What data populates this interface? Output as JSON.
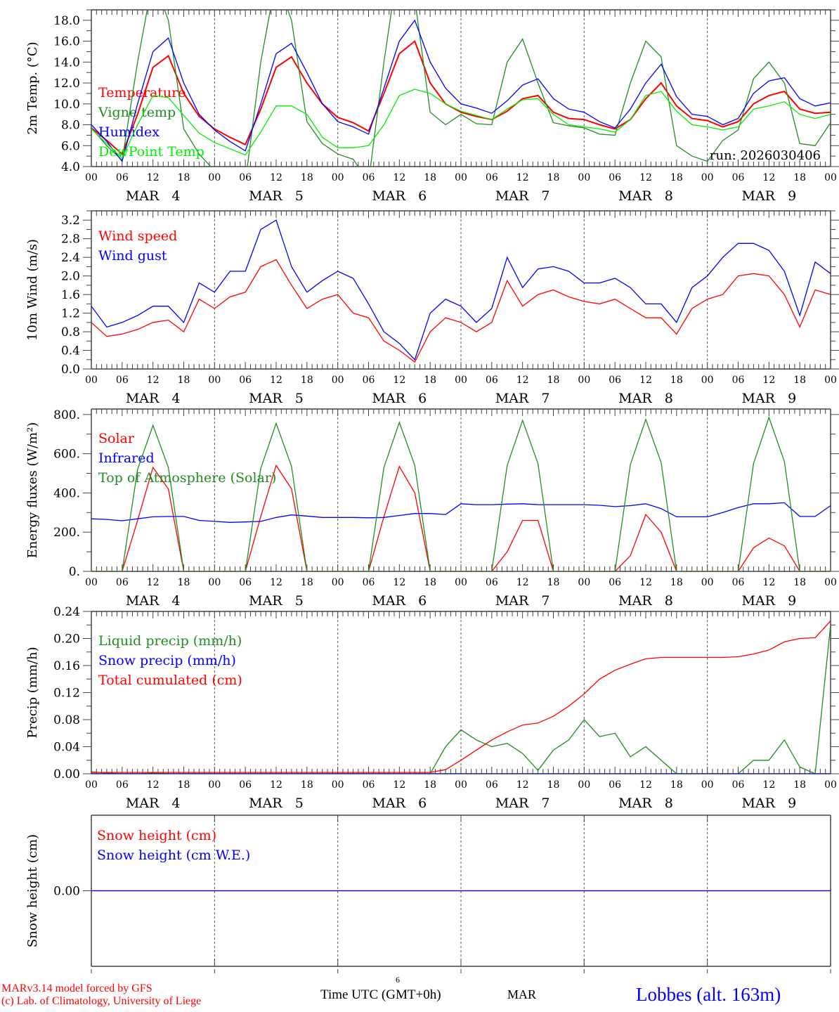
{
  "chart_data": [
    {
      "type": "line",
      "ylabel": "2m Temp. (°C)",
      "ylim": [
        4,
        19
      ],
      "yticks": [
        "4.0",
        "6.0",
        "8.0",
        "10.0",
        "12.0",
        "14.0",
        "16.0",
        "18.0"
      ],
      "ytick_values": [
        4,
        6,
        8,
        10,
        12,
        14,
        16,
        18
      ],
      "x_step_hours": 3,
      "annotation": "run: 2026030406",
      "series": [
        {
          "name": "Temperature",
          "color": "#ff0000",
          "values": [
            7.7,
            6.5,
            5.2,
            9,
            13.5,
            14.6,
            11,
            8.8,
            7.6,
            6.8,
            6.1,
            9.5,
            13.5,
            14.5,
            12,
            10,
            8.7,
            8.2,
            7.4,
            11,
            14.8,
            16,
            12,
            10,
            9.2,
            8.8,
            8.5,
            9.3,
            10.5,
            10.8,
            9.2,
            8.6,
            8.5,
            8,
            7.6,
            8.5,
            10.5,
            12,
            9.8,
            8.6,
            8.4,
            7.8,
            8.3,
            10,
            10.8,
            11.2,
            9.5,
            9.1,
            9.2
          ]
        },
        {
          "name": "Vigne temp",
          "color": "#228b22",
          "values": [
            7.7,
            6,
            4.6,
            14,
            22,
            18,
            7.6,
            5.2,
            3.6,
            2.5,
            2.5,
            14,
            22,
            18,
            8.3,
            6.2,
            5.2,
            4.7,
            2.5,
            14,
            24,
            20,
            9.2,
            8,
            9,
            8.1,
            8,
            14,
            16.2,
            12,
            8.2,
            7.9,
            7.7,
            7.1,
            7,
            12,
            16,
            14.5,
            6,
            5,
            4.5,
            6.5,
            7.5,
            12.4,
            14,
            12,
            6.2,
            6,
            8.2
          ]
        },
        {
          "name": "Humidex",
          "color": "#0000ff",
          "values": [
            8,
            6.4,
            4.5,
            10,
            15,
            16.3,
            12,
            9,
            7.5,
            6.4,
            5.5,
            10,
            14.8,
            15.8,
            13,
            10,
            8.3,
            7.8,
            7.1,
            11.5,
            16,
            18,
            14,
            11.5,
            10,
            9.6,
            9.1,
            10.3,
            11.8,
            12.4,
            10.5,
            9.5,
            9.2,
            8.3,
            7.7,
            9.5,
            12,
            13.8,
            10.7,
            9,
            8.8,
            8,
            8.6,
            11,
            12.2,
            12.5,
            10.5,
            9.8,
            10.1
          ]
        },
        {
          "name": "DewPoint Temp",
          "color": "#00ee00",
          "values": [
            7.6,
            6.2,
            4.8,
            8,
            10.8,
            10.6,
            8.9,
            7.2,
            6.3,
            5.7,
            5.1,
            7.3,
            9.8,
            9.8,
            9,
            6.8,
            5.8,
            5.8,
            6,
            8,
            10.8,
            11.4,
            11,
            10,
            9.3,
            8.9,
            8.5,
            9.5,
            10.4,
            10.5,
            9,
            8,
            7.8,
            7.6,
            7.3,
            8.5,
            10.8,
            11.2,
            9.3,
            8,
            7.8,
            7.5,
            7.8,
            9.5,
            9.8,
            10.2,
            9,
            8.6,
            9
          ]
        }
      ]
    },
    {
      "type": "line",
      "ylabel": "10m Wind (m/s)",
      "ylim": [
        0,
        3.4
      ],
      "yticks": [
        "0.0",
        "0.4",
        "0.8",
        "1.2",
        "1.6",
        "2.0",
        "2.4",
        "2.8",
        "3.2"
      ],
      "ytick_values": [
        0,
        0.4,
        0.8,
        1.2,
        1.6,
        2.0,
        2.4,
        2.8,
        3.2
      ],
      "x_step_hours": 3,
      "series": [
        {
          "name": "Wind speed",
          "color": "#ff0000",
          "values": [
            1,
            0.7,
            0.75,
            0.85,
            1,
            1.05,
            0.8,
            1.5,
            1.3,
            1.55,
            1.65,
            2.2,
            2.35,
            1.8,
            1.3,
            1.5,
            1.6,
            1.2,
            1.1,
            0.6,
            0.4,
            0.15,
            0.8,
            1.1,
            1,
            0.8,
            1,
            1.9,
            1.35,
            1.6,
            1.7,
            1.55,
            1.45,
            1.4,
            1.5,
            1.3,
            1.1,
            1.1,
            0.75,
            1.3,
            1.5,
            1.6,
            2,
            2.05,
            2,
            1.6,
            0.9,
            1.7,
            1.6
          ]
        },
        {
          "name": "Wind gust",
          "color": "#0000ff",
          "values": [
            1.35,
            0.9,
            1,
            1.15,
            1.35,
            1.35,
            1,
            1.85,
            1.65,
            2.1,
            2.1,
            3,
            3.2,
            2.2,
            1.65,
            1.9,
            2.1,
            1.95,
            1.4,
            0.8,
            0.55,
            0.2,
            1.2,
            1.5,
            1.35,
            1,
            1.3,
            2.4,
            1.75,
            2.15,
            2.2,
            2.1,
            1.85,
            1.85,
            1.95,
            1.75,
            1.4,
            1.4,
            1,
            1.75,
            2,
            2.4,
            2.7,
            2.7,
            2.55,
            2.1,
            1.15,
            2.3,
            2.05
          ]
        }
      ]
    },
    {
      "type": "line",
      "ylabel": "Energy fluxes (W/m²)",
      "ylim": [
        0,
        828
      ],
      "yticks": [
        "0.",
        "200.",
        "400.",
        "600.",
        "800."
      ],
      "ytick_values": [
        0,
        200,
        400,
        600,
        800
      ],
      "x_step_hours": 3,
      "series": [
        {
          "name": "Solar",
          "color": "#ff0000",
          "values": [
            0,
            0,
            0,
            260,
            530,
            420,
            0,
            0,
            0,
            0,
            0,
            280,
            540,
            420,
            0,
            0,
            0,
            0,
            0,
            280,
            535,
            400,
            0,
            0,
            0,
            0,
            0,
            100,
            260,
            260,
            0,
            0,
            0,
            0,
            0,
            80,
            290,
            200,
            0,
            0,
            0,
            0,
            0,
            120,
            170,
            130,
            0,
            0,
            0
          ]
        },
        {
          "name": "Infrared",
          "color": "#0000ff",
          "values": [
            268,
            265,
            258,
            268,
            278,
            280,
            280,
            260,
            255,
            250,
            252,
            255,
            275,
            288,
            282,
            275,
            275,
            275,
            273,
            275,
            285,
            295,
            295,
            290,
            345,
            340,
            340,
            343,
            345,
            340,
            340,
            340,
            340,
            337,
            330,
            335,
            345,
            320,
            278,
            278,
            278,
            300,
            325,
            345,
            345,
            350,
            280,
            280,
            335
          ]
        },
        {
          "name": "Top of Atmosphere (Solar)",
          "color": "#228b22",
          "values": [
            0,
            0,
            0,
            520,
            745,
            530,
            0,
            0,
            0,
            0,
            0,
            525,
            755,
            535,
            0,
            0,
            0,
            0,
            0,
            530,
            760,
            540,
            0,
            0,
            0,
            0,
            0,
            540,
            770,
            550,
            0,
            0,
            0,
            0,
            0,
            545,
            775,
            555,
            0,
            0,
            0,
            0,
            0,
            550,
            785,
            560,
            0,
            0,
            0
          ]
        }
      ]
    },
    {
      "type": "line",
      "ylabel": "Precip (mm/h)",
      "ylim": [
        0,
        0.24
      ],
      "yticks": [
        "0.00",
        "0.04",
        "0.08",
        "0.12",
        "0.16",
        "0.20",
        "0.24"
      ],
      "ytick_values": [
        0,
        0.04,
        0.08,
        0.12,
        0.16,
        0.2,
        0.24
      ],
      "x_step_hours": 3,
      "series": [
        {
          "name": "Liquid precip (mm/h)",
          "color": "#228b22",
          "values": [
            0.003,
            0.001,
            0,
            0,
            0.001,
            0,
            0,
            0,
            0,
            0,
            0,
            0,
            0,
            0,
            0,
            0,
            0,
            0,
            0,
            0,
            0,
            0,
            0,
            0.04,
            0.065,
            0.05,
            0.04,
            0.045,
            0.03,
            0.005,
            0.035,
            0.05,
            0.08,
            0.055,
            0.06,
            0.025,
            0.04,
            0.02,
            0,
            0,
            0,
            0,
            0,
            0.02,
            0.02,
            0.05,
            0.01,
            0,
            0.22
          ]
        },
        {
          "name": "Snow precip (mm/h)",
          "color": "#0000ff",
          "values": [
            0,
            0,
            0,
            0,
            0,
            0,
            0,
            0,
            0,
            0,
            0,
            0,
            0,
            0,
            0,
            0,
            0,
            0,
            0,
            0,
            0,
            0,
            0,
            0,
            0,
            0,
            0,
            0,
            0,
            0,
            0,
            0,
            0,
            0,
            0,
            0,
            0,
            0,
            0,
            0,
            0,
            0,
            0,
            0,
            0,
            0,
            0,
            0,
            0
          ]
        },
        {
          "name": "Total cumulated (cm)",
          "color": "#ff0000",
          "values": [
            0.002,
            0.002,
            0.002,
            0.002,
            0.002,
            0.002,
            0.002,
            0.002,
            0.002,
            0.002,
            0.002,
            0.002,
            0.002,
            0.002,
            0.002,
            0.002,
            0.002,
            0.002,
            0.002,
            0.002,
            0.002,
            0.002,
            0.002,
            0.006,
            0.02,
            0.035,
            0.05,
            0.062,
            0.072,
            0.075,
            0.085,
            0.1,
            0.118,
            0.14,
            0.153,
            0.162,
            0.17,
            0.172,
            0.172,
            0.172,
            0.172,
            0.172,
            0.173,
            0.177,
            0.183,
            0.195,
            0.2,
            0.201,
            0.226
          ]
        }
      ]
    },
    {
      "type": "line",
      "ylabel": "Snow height (cm)",
      "ylim": [
        -1,
        1
      ],
      "yticks": [
        "0.00"
      ],
      "ytick_values": [
        0
      ],
      "x_step_hours": 3,
      "series": [
        {
          "name": "Snow height (cm)",
          "color": "#ff0000",
          "values": [
            0,
            0,
            0,
            0,
            0,
            0,
            0,
            0,
            0,
            0,
            0,
            0,
            0,
            0,
            0,
            0,
            0,
            0,
            0,
            0,
            0,
            0,
            0,
            0,
            0,
            0,
            0,
            0,
            0,
            0,
            0,
            0,
            0,
            0,
            0,
            0,
            0,
            0,
            0,
            0,
            0,
            0,
            0,
            0,
            0,
            0,
            0,
            0,
            0
          ]
        },
        {
          "name": "Snow height (cm W.E.)",
          "color": "#0000ff",
          "values": [
            0,
            0,
            0,
            0,
            0,
            0,
            0,
            0,
            0,
            0,
            0,
            0,
            0,
            0,
            0,
            0,
            0,
            0,
            0,
            0,
            0,
            0,
            0,
            0,
            0,
            0,
            0,
            0,
            0,
            0,
            0,
            0,
            0,
            0,
            0,
            0,
            0,
            0,
            0,
            0,
            0,
            0,
            0,
            0,
            0,
            0,
            0,
            0,
            0
          ]
        }
      ]
    }
  ],
  "x_axis": {
    "hour_labels": [
      "00",
      "06",
      "12",
      "18"
    ],
    "end_label": "00",
    "days": [
      "MAR   4",
      "MAR   5",
      "MAR   6",
      "MAR   7",
      "MAR   8",
      "MAR   9"
    ]
  },
  "footer": {
    "model_line": "MARv3.14 model forced by GFS",
    "credit_line": "(c) Lab. of Climatology, University of Liege",
    "xlabel": "Time UTC (GMT+0h)",
    "day_number": "6",
    "month": "MAR",
    "station": "Lobbes (alt. 163m)"
  }
}
